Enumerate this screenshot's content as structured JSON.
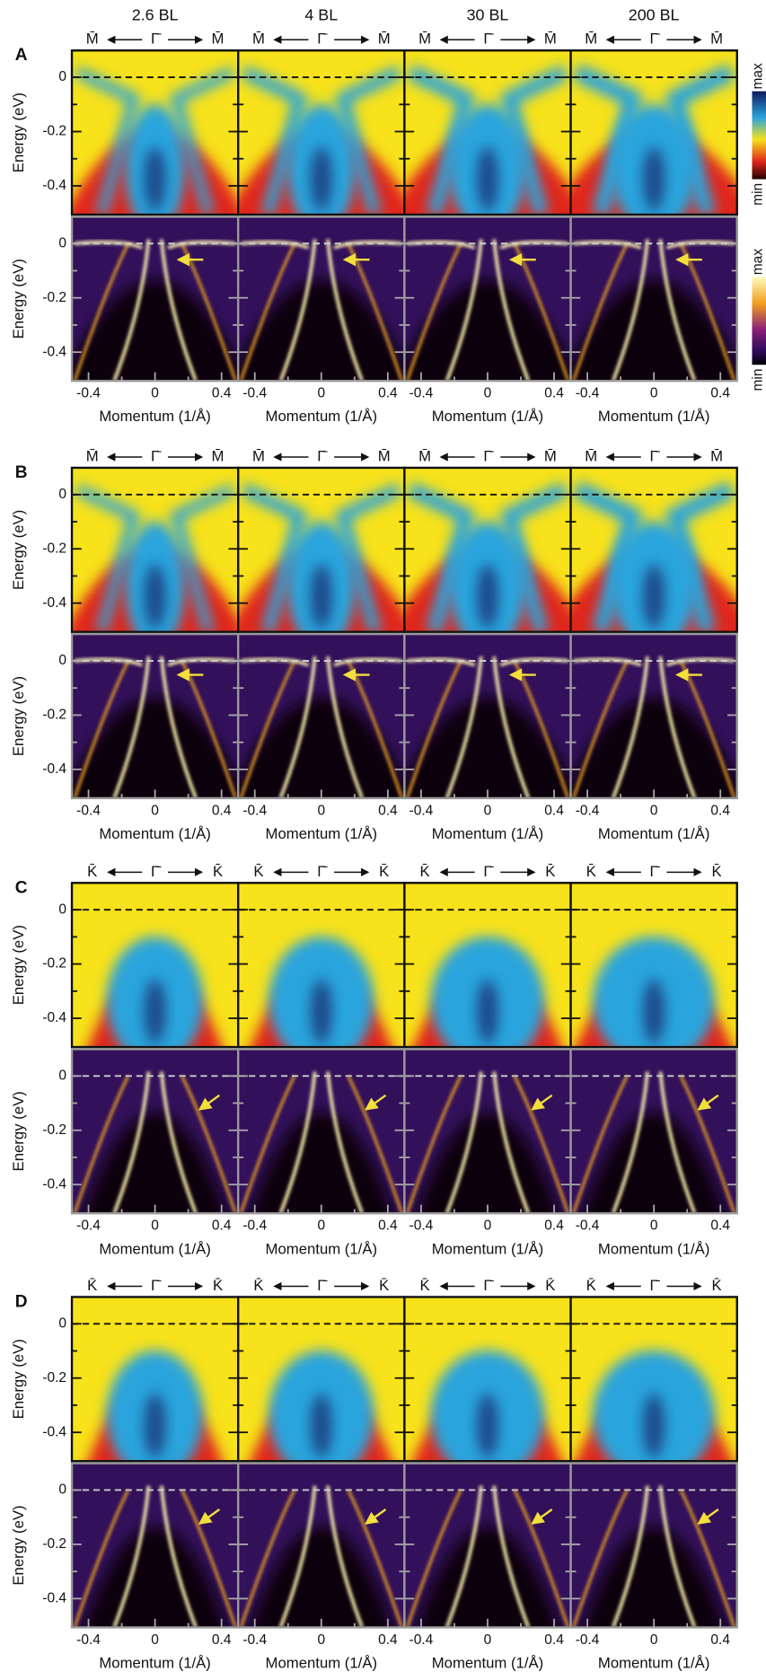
{
  "column_titles": [
    "2.6 BL",
    "4 BL",
    "30 BL",
    "200 BL"
  ],
  "sections": [
    {
      "label": "A",
      "direction": [
        "M̄",
        "Γ̄",
        "M̄"
      ]
    },
    {
      "label": "B",
      "direction": [
        "M̄",
        "Γ̄",
        "M̄"
      ]
    },
    {
      "label": "C",
      "direction": [
        "K̄",
        "Γ̄",
        "K̄"
      ]
    },
    {
      "label": "D",
      "direction": [
        "K̄",
        "Γ̄",
        "K̄"
      ]
    }
  ],
  "axes": {
    "energy_title": "Energy (eV)",
    "energy_ticks": [
      "0",
      "-0.2",
      "-0.4"
    ],
    "momentum_title": "Momentum (1/Å)",
    "momentum_ticks": [
      "-0.4",
      "0",
      "0.4"
    ]
  },
  "colorbars": [
    {
      "max": "max",
      "min": "min"
    },
    {
      "max": "max",
      "min": "min"
    }
  ]
}
